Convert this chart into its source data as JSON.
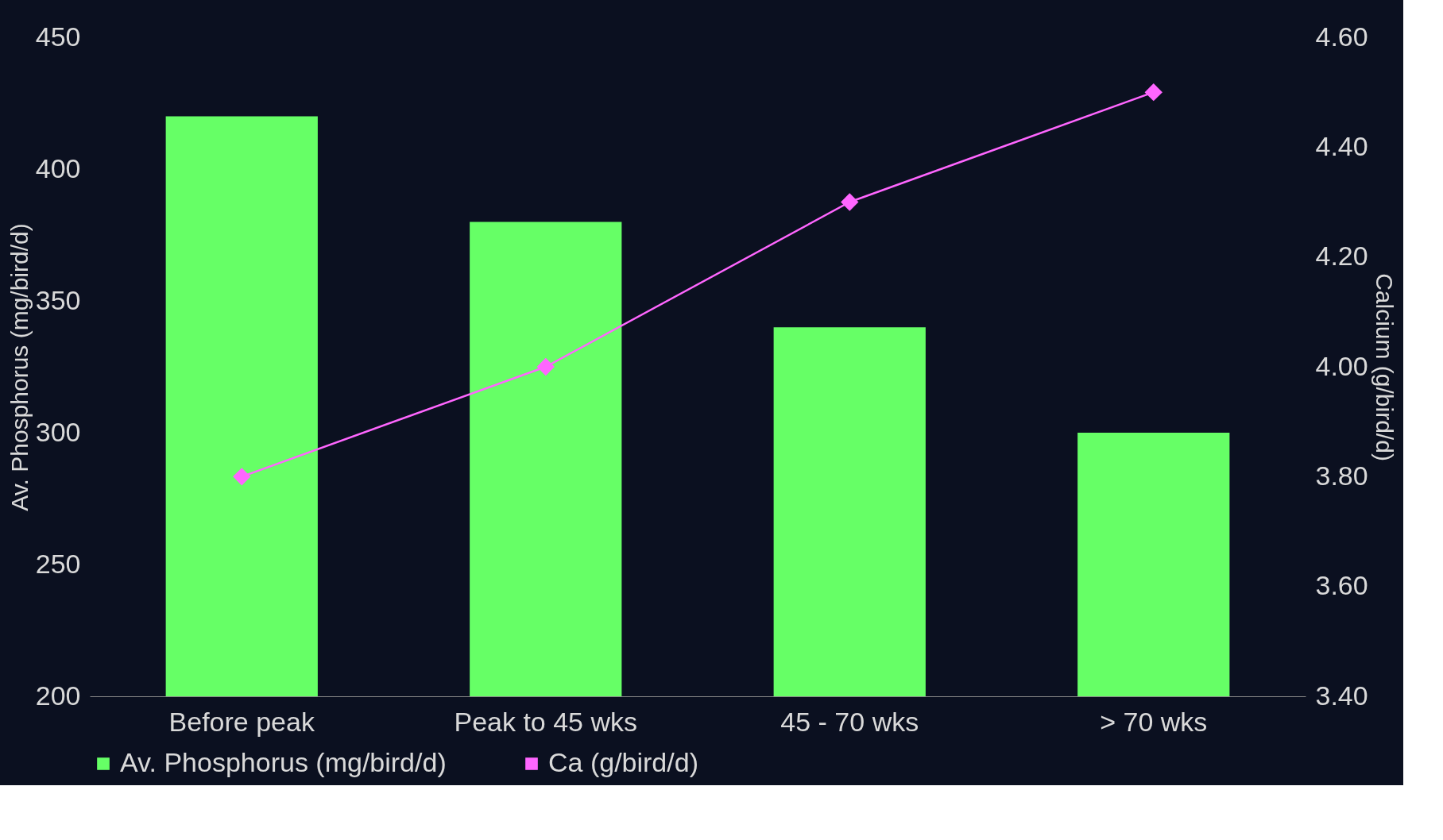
{
  "chart_data": {
    "type": "bar",
    "categories": [
      "Before peak",
      "Peak to 45 wks",
      "45 - 70 wks",
      "> 70 wks"
    ],
    "series": [
      {
        "name": "Av. Phosphorus (mg/bird/d)",
        "color": "#66ff66",
        "values": [
          420,
          380,
          340,
          300
        ]
      },
      {
        "name": "Ca (g/bird/d)",
        "type": "line",
        "axis": "y2",
        "color": "#ff66ff",
        "marker": "diamond",
        "values": [
          3.8,
          4.0,
          4.3,
          4.5
        ]
      }
    ],
    "ylabel": "Av. Phosphorus (mg/bird/d)",
    "y2label": "Calcium (g/bird/d)",
    "ylim": [
      200,
      450
    ],
    "yticks": [
      200,
      250,
      300,
      350,
      400,
      450
    ],
    "y2lim": [
      3.4,
      4.6
    ],
    "y2ticks": [
      {
        "value": 3.4,
        "label": "3.40"
      },
      {
        "value": 3.6,
        "label": "3.60"
      },
      {
        "value": 3.8,
        "label": "3.80"
      },
      {
        "value": 4.0,
        "label": "4.00"
      },
      {
        "value": 4.2,
        "label": "4.20"
      },
      {
        "value": 4.4,
        "label": "4.40"
      },
      {
        "value": 4.6,
        "label": "4.60"
      }
    ],
    "grid": false,
    "legend": "bottom"
  }
}
